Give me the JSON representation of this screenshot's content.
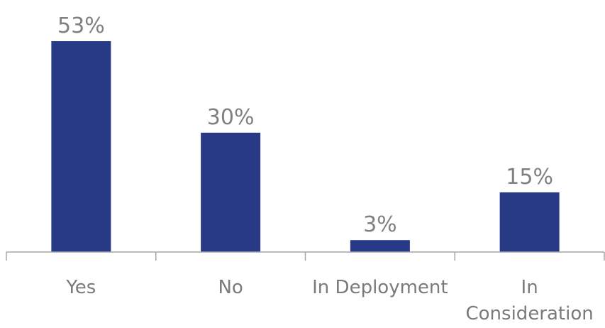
{
  "chart_data": {
    "type": "bar",
    "categories": [
      [
        "Yes"
      ],
      [
        "No"
      ],
      [
        "In Deployment"
      ],
      [
        "In",
        "Consideration"
      ]
    ],
    "values": [
      53,
      30,
      3,
      15
    ],
    "data_labels": [
      "53%",
      "30%",
      "3%",
      "15%"
    ],
    "unit": "%",
    "title": "",
    "xlabel": "",
    "ylabel": "",
    "ylim": [
      0,
      55
    ],
    "grid": false,
    "legend": "none",
    "bar_color": "#283a86",
    "axis_color": "#a6a6a6",
    "label_color": "#808080"
  }
}
